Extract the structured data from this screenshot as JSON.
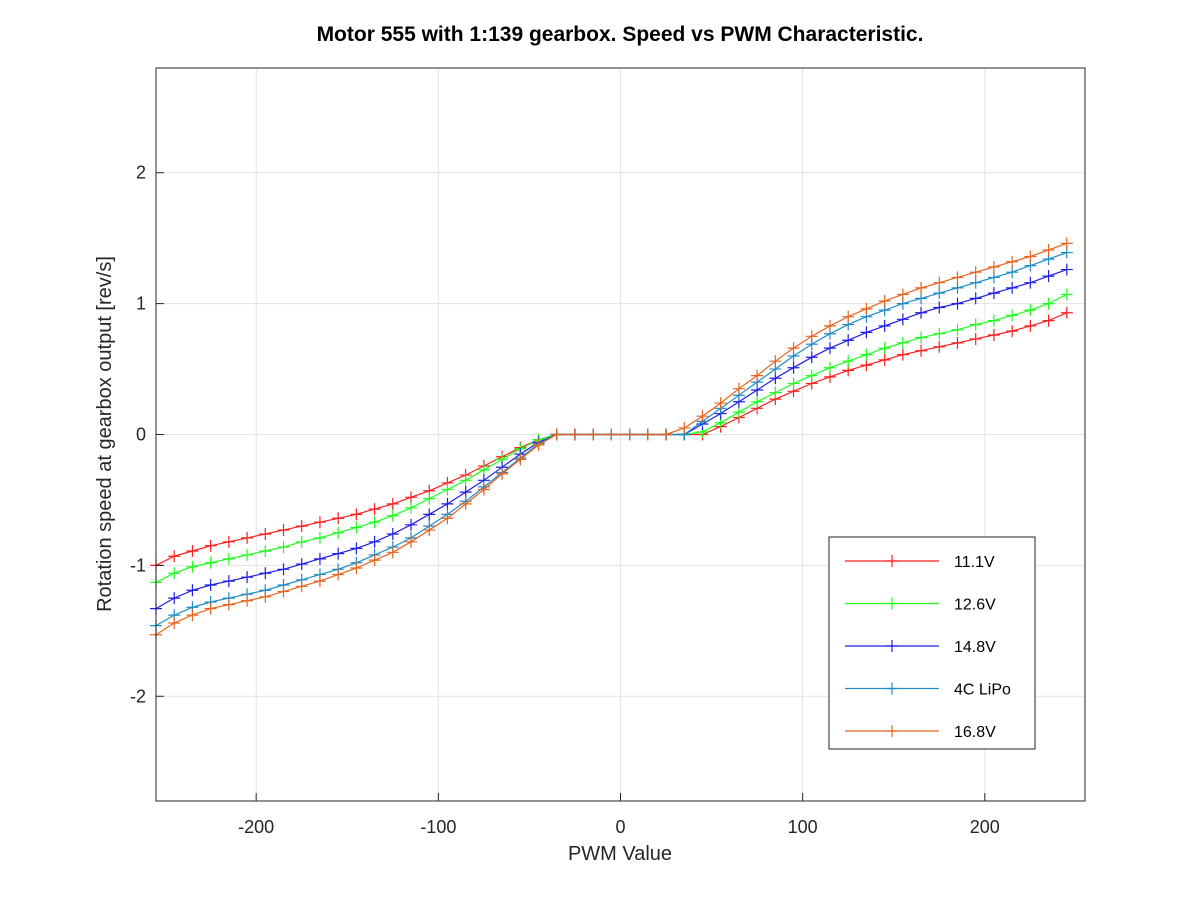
{
  "chart_data": {
    "type": "line",
    "title": "Motor 555 with 1:139 gearbox. Speed vs PWM Characteristic.",
    "xlabel": "PWM Value",
    "ylabel": "Rotation speed at gearbox output [rev/s]",
    "xlim": [
      -255,
      255
    ],
    "ylim": [
      -2.8,
      2.8
    ],
    "xticks": [
      -200,
      -100,
      0,
      100,
      200
    ],
    "yticks": [
      -2,
      -1,
      0,
      1,
      2
    ],
    "xtick_labels": [
      "-200",
      "-100",
      "0",
      "100",
      "200"
    ],
    "ytick_labels": [
      "-2",
      "-1",
      "0",
      "1",
      "2"
    ],
    "grid": true,
    "legend_position": "lower-right",
    "marker": "+",
    "x": [
      -255,
      -245,
      -235,
      -225,
      -215,
      -205,
      -195,
      -185,
      -175,
      -165,
      -155,
      -145,
      -135,
      -125,
      -115,
      -105,
      -95,
      -85,
      -75,
      -65,
      -55,
      -45,
      -35,
      -25,
      -15,
      -5,
      5,
      15,
      25,
      35,
      45,
      55,
      65,
      75,
      85,
      95,
      105,
      115,
      125,
      135,
      145,
      155,
      165,
      175,
      185,
      195,
      205,
      215,
      225,
      235,
      245
    ],
    "series": [
      {
        "name": "11.1V",
        "color": "#ff1e1e",
        "values": [
          -1.0,
          -0.93,
          -0.89,
          -0.85,
          -0.82,
          -0.79,
          -0.76,
          -0.73,
          -0.7,
          -0.67,
          -0.64,
          -0.61,
          -0.57,
          -0.53,
          -0.48,
          -0.43,
          -0.37,
          -0.31,
          -0.24,
          -0.17,
          -0.1,
          -0.04,
          0,
          0,
          0,
          0,
          0,
          0,
          0,
          0,
          0,
          0.06,
          0.13,
          0.2,
          0.27,
          0.33,
          0.39,
          0.44,
          0.49,
          0.53,
          0.57,
          0.61,
          0.64,
          0.67,
          0.7,
          0.73,
          0.76,
          0.79,
          0.83,
          0.87,
          0.93
        ]
      },
      {
        "name": "12.6V",
        "color": "#1eff1e",
        "values": [
          -1.13,
          -1.06,
          -1.01,
          -0.98,
          -0.95,
          -0.92,
          -0.89,
          -0.86,
          -0.82,
          -0.79,
          -0.75,
          -0.71,
          -0.67,
          -0.62,
          -0.56,
          -0.49,
          -0.42,
          -0.35,
          -0.27,
          -0.19,
          -0.11,
          -0.04,
          0,
          0,
          0,
          0,
          0,
          0,
          0,
          0,
          0.02,
          0.09,
          0.17,
          0.25,
          0.32,
          0.39,
          0.45,
          0.51,
          0.56,
          0.61,
          0.66,
          0.7,
          0.74,
          0.77,
          0.8,
          0.84,
          0.87,
          0.91,
          0.95,
          1.0,
          1.07
        ]
      },
      {
        "name": "14.8V",
        "color": "#1e1ee6",
        "values": [
          -1.33,
          -1.25,
          -1.19,
          -1.15,
          -1.12,
          -1.09,
          -1.06,
          -1.03,
          -0.99,
          -0.95,
          -0.91,
          -0.87,
          -0.82,
          -0.76,
          -0.69,
          -0.61,
          -0.53,
          -0.44,
          -0.35,
          -0.25,
          -0.15,
          -0.06,
          0,
          0,
          0,
          0,
          0,
          0,
          0,
          0,
          0.08,
          0.16,
          0.25,
          0.34,
          0.43,
          0.51,
          0.59,
          0.66,
          0.72,
          0.78,
          0.83,
          0.88,
          0.93,
          0.97,
          1.0,
          1.04,
          1.08,
          1.12,
          1.16,
          1.21,
          1.26
        ]
      },
      {
        "name": "4C LiPo",
        "color": "#1e8cc8",
        "values": [
          -1.46,
          -1.38,
          -1.32,
          -1.28,
          -1.25,
          -1.22,
          -1.19,
          -1.15,
          -1.11,
          -1.07,
          -1.03,
          -0.98,
          -0.92,
          -0.86,
          -0.79,
          -0.7,
          -0.61,
          -0.51,
          -0.4,
          -0.29,
          -0.18,
          -0.07,
          0,
          0,
          0,
          0,
          0,
          0,
          0,
          0,
          0.1,
          0.2,
          0.3,
          0.4,
          0.5,
          0.6,
          0.69,
          0.77,
          0.84,
          0.9,
          0.95,
          1.0,
          1.04,
          1.08,
          1.12,
          1.16,
          1.2,
          1.24,
          1.29,
          1.34,
          1.39
        ]
      },
      {
        "name": "16.8V",
        "color": "#e6641e",
        "values": [
          -1.53,
          -1.44,
          -1.38,
          -1.33,
          -1.3,
          -1.27,
          -1.24,
          -1.2,
          -1.16,
          -1.12,
          -1.07,
          -1.02,
          -0.96,
          -0.9,
          -0.82,
          -0.73,
          -0.64,
          -0.53,
          -0.42,
          -0.3,
          -0.19,
          -0.08,
          0,
          0,
          0,
          0,
          0,
          0,
          0,
          0.05,
          0.14,
          0.24,
          0.35,
          0.45,
          0.56,
          0.66,
          0.75,
          0.83,
          0.9,
          0.96,
          1.02,
          1.07,
          1.12,
          1.16,
          1.2,
          1.24,
          1.28,
          1.32,
          1.36,
          1.41,
          1.46
        ]
      }
    ]
  }
}
